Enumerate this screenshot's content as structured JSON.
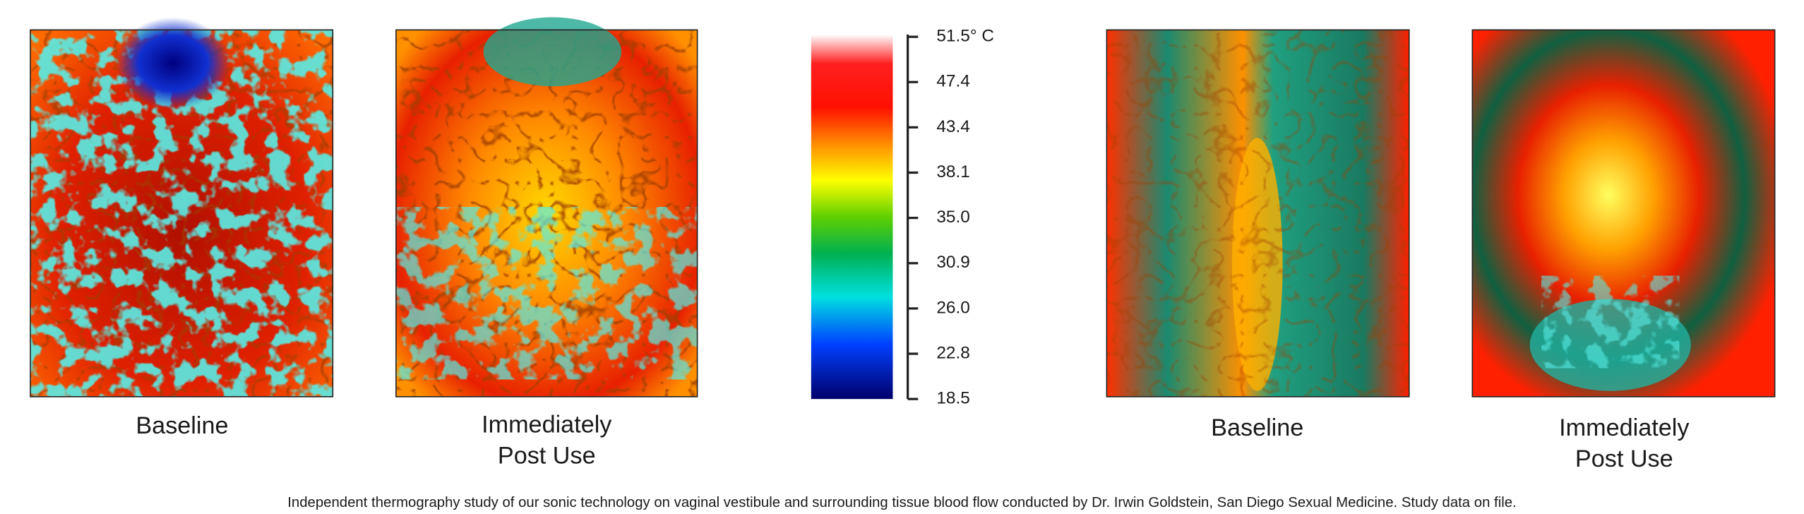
{
  "panels": [
    {
      "label": [
        "Baseline"
      ]
    },
    {
      "label": [
        "Immediately",
        "Post Use"
      ]
    },
    {
      "label": [
        "Baseline"
      ]
    },
    {
      "label": [
        "Immediately",
        "Post Use"
      ]
    }
  ],
  "colorbar": {
    "ticks": [
      "51.5° C",
      "47.4",
      "43.4",
      "38.1",
      "35.0",
      "30.9",
      "26.0",
      "22.8",
      "18.5"
    ]
  },
  "caption": "Independent thermography study of our sonic technology on vaginal vestibule and surrounding tissue blood flow conducted by Dr. Irwin Goldstein, San Diego Sexual Medicine. Study data on file."
}
